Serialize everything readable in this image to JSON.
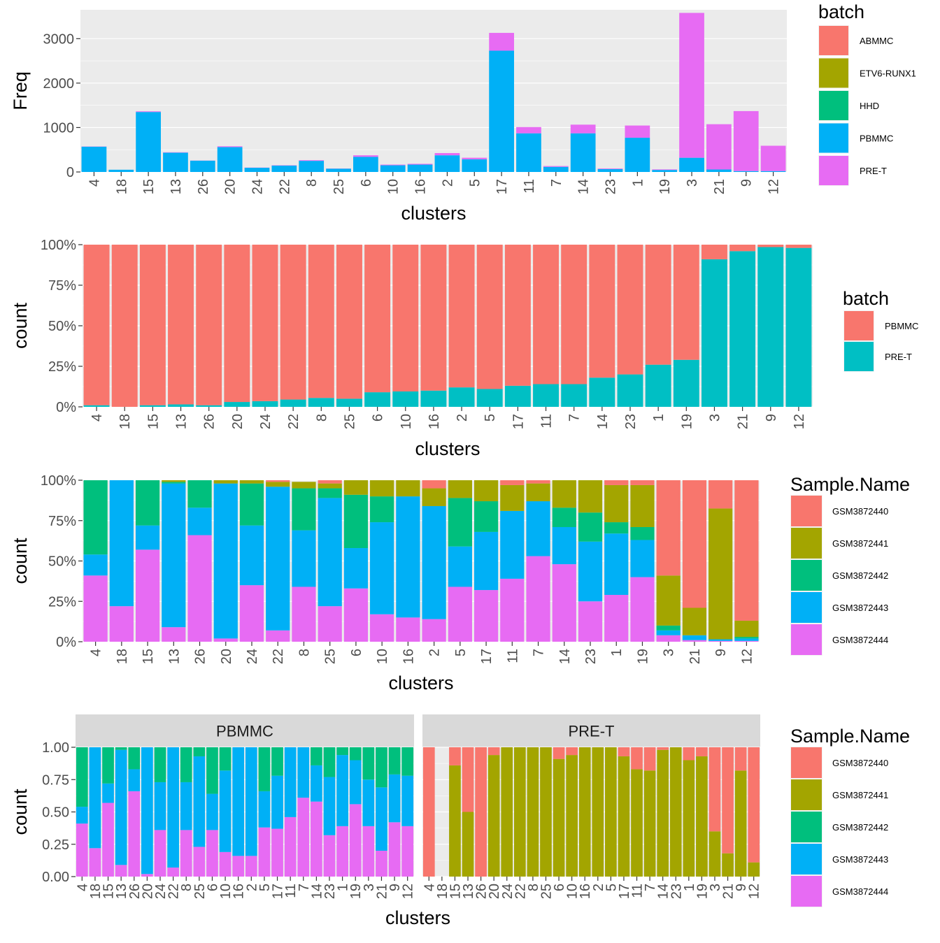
{
  "chart_data": [
    {
      "type": "bar",
      "stacked": true,
      "xlabel": "clusters",
      "ylabel": "Freq",
      "ylim": [
        0,
        3650
      ],
      "yticks": [
        0,
        1000,
        2000,
        3000
      ],
      "ytick_labels": [
        "0",
        "1000",
        "2000",
        "3000"
      ],
      "grid": true,
      "legend_position": "right",
      "legend_title": "batch",
      "categories": [
        "4",
        "18",
        "15",
        "13",
        "26",
        "20",
        "24",
        "22",
        "8",
        "25",
        "6",
        "10",
        "16",
        "2",
        "5",
        "17",
        "11",
        "7",
        "14",
        "23",
        "1",
        "19",
        "3",
        "21",
        "9",
        "12"
      ],
      "series": [
        {
          "name": "ABMMC",
          "color": "#F8766D",
          "values": [
            0,
            0,
            0,
            0,
            0,
            0,
            0,
            0,
            0,
            0,
            0,
            0,
            0,
            0,
            0,
            0,
            0,
            0,
            0,
            0,
            0,
            0,
            0,
            0,
            0,
            0
          ]
        },
        {
          "name": "ETV6-RUNX1",
          "color": "#A3A500",
          "values": [
            0,
            0,
            0,
            0,
            0,
            0,
            0,
            0,
            0,
            0,
            0,
            0,
            0,
            0,
            0,
            0,
            0,
            0,
            0,
            0,
            0,
            0,
            0,
            0,
            0,
            0
          ]
        },
        {
          "name": "HHD",
          "color": "#00BF7D",
          "values": [
            0,
            0,
            0,
            0,
            0,
            0,
            0,
            0,
            0,
            0,
            0,
            0,
            0,
            0,
            0,
            0,
            0,
            0,
            0,
            0,
            0,
            0,
            0,
            0,
            0,
            0
          ]
        },
        {
          "name": "PBMMC",
          "color": "#00B0F6",
          "values": [
            570,
            50,
            1350,
            435,
            255,
            560,
            95,
            145,
            250,
            75,
            340,
            150,
            165,
            375,
            285,
            2730,
            870,
            115,
            870,
            65,
            770,
            45,
            320,
            55,
            20,
            20
          ]
        },
        {
          "name": "PRE-T",
          "color": "#E76BF3",
          "values": [
            5,
            0,
            15,
            8,
            3,
            18,
            4,
            7,
            15,
            4,
            35,
            15,
            18,
            50,
            35,
            400,
            140,
            18,
            195,
            14,
            275,
            13,
            3260,
            1020,
            1350,
            570
          ]
        }
      ]
    },
    {
      "type": "bar",
      "stacked": true,
      "normalized": true,
      "xlabel": "clusters",
      "ylabel": "count",
      "ylim": [
        0,
        1
      ],
      "yticks": [
        0,
        0.25,
        0.5,
        0.75,
        1
      ],
      "ytick_labels": [
        "0%",
        "25%",
        "50%",
        "75%",
        "100%"
      ],
      "grid": true,
      "legend_position": "right",
      "legend_title": "batch",
      "categories": [
        "4",
        "18",
        "15",
        "13",
        "26",
        "20",
        "24",
        "22",
        "8",
        "25",
        "6",
        "10",
        "16",
        "2",
        "5",
        "17",
        "11",
        "7",
        "14",
        "23",
        "1",
        "19",
        "3",
        "21",
        "9",
        "12"
      ],
      "series": [
        {
          "name": "PRE-T",
          "color": "#00BFC4",
          "values": [
            0.01,
            0.0,
            0.01,
            0.015,
            0.01,
            0.03,
            0.035,
            0.045,
            0.055,
            0.05,
            0.09,
            0.095,
            0.1,
            0.12,
            0.11,
            0.13,
            0.14,
            0.14,
            0.18,
            0.2,
            0.26,
            0.29,
            0.91,
            0.96,
            0.985,
            0.98
          ]
        },
        {
          "name": "PBMMC",
          "color": "#F8766D",
          "values": [
            0.99,
            1.0,
            0.99,
            0.985,
            0.99,
            0.97,
            0.965,
            0.955,
            0.945,
            0.95,
            0.91,
            0.905,
            0.9,
            0.88,
            0.89,
            0.87,
            0.86,
            0.86,
            0.82,
            0.8,
            0.74,
            0.71,
            0.09,
            0.04,
            0.015,
            0.02
          ]
        }
      ]
    },
    {
      "type": "bar",
      "stacked": true,
      "normalized": true,
      "xlabel": "clusters",
      "ylabel": "count",
      "ylim": [
        0,
        1
      ],
      "yticks": [
        0,
        0.25,
        0.5,
        0.75,
        1
      ],
      "ytick_labels": [
        "0%",
        "25%",
        "50%",
        "75%",
        "100%"
      ],
      "grid": true,
      "legend_position": "right",
      "legend_title": "Sample.Name",
      "categories": [
        "4",
        "18",
        "15",
        "13",
        "26",
        "20",
        "24",
        "22",
        "8",
        "25",
        "6",
        "10",
        "16",
        "2",
        "5",
        "17",
        "11",
        "7",
        "14",
        "23",
        "1",
        "19",
        "3",
        "21",
        "9",
        "12"
      ],
      "series": [
        {
          "name": "GSM3872444",
          "color": "#E76BF3",
          "values": [
            0.41,
            0.22,
            0.57,
            0.09,
            0.66,
            0.02,
            0.35,
            0.07,
            0.34,
            0.22,
            0.33,
            0.17,
            0.15,
            0.14,
            0.34,
            0.32,
            0.39,
            0.53,
            0.48,
            0.25,
            0.29,
            0.4,
            0.04,
            0.01,
            0.005,
            0.005
          ]
        },
        {
          "name": "GSM3872443",
          "color": "#00B0F6",
          "values": [
            0.13,
            0.78,
            0.15,
            0.89,
            0.17,
            0.96,
            0.37,
            0.89,
            0.35,
            0.67,
            0.25,
            0.57,
            0.75,
            0.7,
            0.25,
            0.36,
            0.42,
            0.34,
            0.23,
            0.37,
            0.38,
            0.23,
            0.03,
            0.03,
            0.01,
            0.015
          ]
        },
        {
          "name": "GSM3872442",
          "color": "#00BF7D",
          "values": [
            0.46,
            0.0,
            0.28,
            0.01,
            0.17,
            0.0,
            0.26,
            0.0,
            0.26,
            0.06,
            0.33,
            0.16,
            0.0,
            0.0,
            0.3,
            0.19,
            0.0,
            0.0,
            0.12,
            0.18,
            0.07,
            0.08,
            0.03,
            0.0,
            0.0,
            0.01
          ]
        },
        {
          "name": "GSM3872441",
          "color": "#A3A500",
          "values": [
            0.0,
            0.0,
            0.0,
            0.01,
            0.0,
            0.02,
            0.02,
            0.03,
            0.04,
            0.03,
            0.09,
            0.1,
            0.1,
            0.11,
            0.11,
            0.13,
            0.16,
            0.11,
            0.17,
            0.2,
            0.23,
            0.26,
            0.31,
            0.17,
            0.81,
            0.1
          ]
        },
        {
          "name": "GSM3872440",
          "color": "#F8766D",
          "values": [
            0.0,
            0.0,
            0.0,
            0.0,
            0.0,
            0.0,
            0.0,
            0.01,
            0.0,
            0.02,
            0.0,
            0.0,
            0.0,
            0.05,
            0.0,
            0.0,
            0.03,
            0.02,
            0.0,
            0.0,
            0.03,
            0.03,
            0.59,
            0.79,
            0.175,
            0.87
          ]
        }
      ]
    },
    {
      "type": "bar",
      "stacked": true,
      "normalized": true,
      "faceted": true,
      "xlabel": "clusters",
      "ylabel": "count",
      "ylim": [
        0,
        1
      ],
      "yticks": [
        0,
        0.25,
        0.5,
        0.75,
        1
      ],
      "ytick_labels": [
        "0.00",
        "0.25",
        "0.50",
        "0.75",
        "1.00"
      ],
      "grid": true,
      "legend_position": "right",
      "legend_title": "Sample.Name",
      "categories": [
        "4",
        "18",
        "15",
        "13",
        "26",
        "20",
        "24",
        "22",
        "8",
        "25",
        "6",
        "10",
        "16",
        "2",
        "5",
        "17",
        "11",
        "7",
        "14",
        "23",
        "1",
        "19",
        "3",
        "21",
        "9",
        "12"
      ],
      "series_names": [
        "GSM3872444",
        "GSM3872443",
        "GSM3872442",
        "GSM3872441",
        "GSM3872440"
      ],
      "series_colors": [
        "#E76BF3",
        "#00B0F6",
        "#00BF7D",
        "#A3A500",
        "#F8766D"
      ],
      "facets": [
        {
          "label": "PBMMC",
          "values": [
            [
              0.41,
              0.13,
              0.46,
              0,
              0
            ],
            [
              0.22,
              0.78,
              0,
              0,
              0
            ],
            [
              0.57,
              0.15,
              0.28,
              0,
              0
            ],
            [
              0.09,
              0.89,
              0.02,
              0,
              0
            ],
            [
              0.66,
              0.17,
              0.17,
              0,
              0
            ],
            [
              0.02,
              0.98,
              0,
              0,
              0
            ],
            [
              0.36,
              0.37,
              0.27,
              0,
              0
            ],
            [
              0.07,
              0.93,
              0,
              0,
              0
            ],
            [
              0.36,
              0.37,
              0.27,
              0,
              0
            ],
            [
              0.23,
              0.7,
              0.07,
              0,
              0
            ],
            [
              0.36,
              0.28,
              0.36,
              0,
              0
            ],
            [
              0.19,
              0.63,
              0.18,
              0,
              0
            ],
            [
              0.16,
              0.84,
              0,
              0,
              0
            ],
            [
              0.16,
              0.84,
              0,
              0,
              0
            ],
            [
              0.38,
              0.28,
              0.34,
              0,
              0
            ],
            [
              0.37,
              0.41,
              0.22,
              0,
              0
            ],
            [
              0.46,
              0.54,
              0,
              0,
              0
            ],
            [
              0.61,
              0.39,
              0,
              0,
              0
            ],
            [
              0.58,
              0.28,
              0.14,
              0,
              0
            ],
            [
              0.32,
              0.45,
              0.23,
              0,
              0
            ],
            [
              0.39,
              0.55,
              0.06,
              0,
              0
            ],
            [
              0.56,
              0.34,
              0.1,
              0,
              0
            ],
            [
              0.39,
              0.36,
              0.25,
              0,
              0
            ],
            [
              0.2,
              0.49,
              0.31,
              0,
              0
            ],
            [
              0.42,
              0.37,
              0.21,
              0,
              0
            ],
            [
              0.39,
              0.39,
              0.22,
              0,
              0
            ]
          ]
        },
        {
          "label": "PRE-T",
          "values": [
            [
              0,
              0,
              0,
              0,
              1
            ],
            [
              0,
              0,
              0,
              0,
              0
            ],
            [
              0,
              0,
              0,
              0.86,
              0.14
            ],
            [
              0,
              0,
              0,
              0.5,
              0.5
            ],
            [
              0,
              0,
              0,
              0,
              1
            ],
            [
              0,
              0,
              0,
              0.94,
              0.06
            ],
            [
              0,
              0,
              0,
              1,
              0
            ],
            [
              0,
              0,
              0,
              1,
              0
            ],
            [
              0,
              0,
              0,
              1,
              0
            ],
            [
              0,
              0,
              0,
              1,
              0
            ],
            [
              0,
              0,
              0,
              0.91,
              0.09
            ],
            [
              0,
              0,
              0,
              0.94,
              0.06
            ],
            [
              0,
              0,
              0,
              1,
              0
            ],
            [
              0,
              0,
              0,
              1,
              0
            ],
            [
              0,
              0,
              0,
              1,
              0
            ],
            [
              0,
              0,
              0,
              0.93,
              0.07
            ],
            [
              0,
              0,
              0,
              0.83,
              0.17
            ],
            [
              0,
              0,
              0,
              0.82,
              0.18
            ],
            [
              0,
              0,
              0,
              0.98,
              0.02
            ],
            [
              0,
              0,
              0,
              1,
              0
            ],
            [
              0,
              0,
              0,
              0.9,
              0.1
            ],
            [
              0,
              0,
              0,
              0.93,
              0.07
            ],
            [
              0,
              0,
              0,
              0.35,
              0.65
            ],
            [
              0,
              0,
              0,
              0.18,
              0.82
            ],
            [
              0,
              0,
              0,
              0.82,
              0.18
            ],
            [
              0,
              0,
              0,
              0.11,
              0.89
            ]
          ]
        }
      ]
    }
  ]
}
